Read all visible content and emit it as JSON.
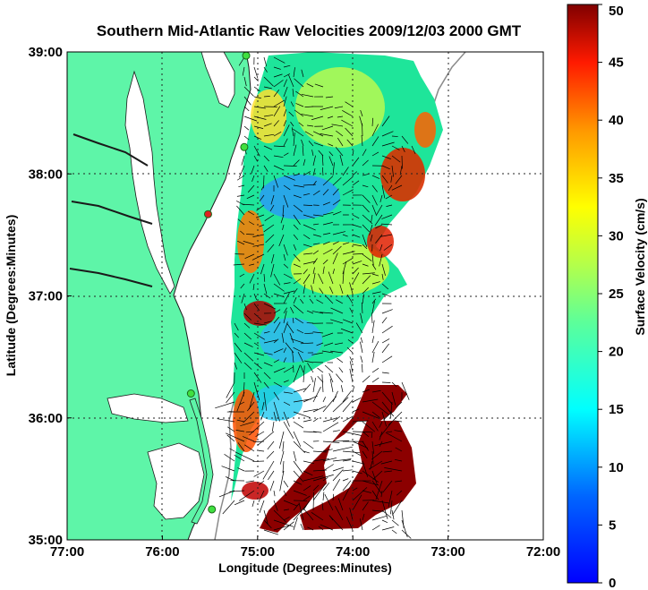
{
  "chart_data": {
    "type": "heatmap",
    "title": "Southern Mid-Atlantic Raw Velocities 2009/12/03 2000 GMT",
    "title_color": "#1010e0",
    "xlabel": "Longitude (Degrees:Minutes)",
    "ylabel": "Latitude (Degrees:Minutes)",
    "xlim": [
      -77,
      -72
    ],
    "ylim": [
      35,
      39
    ],
    "x_ticks": [
      {
        "value": -77,
        "label": "77:00"
      },
      {
        "value": -76,
        "label": "76:00"
      },
      {
        "value": -75,
        "label": "75:00"
      },
      {
        "value": -74,
        "label": "74:00"
      },
      {
        "value": -73,
        "label": "73:00"
      },
      {
        "value": -72,
        "label": "72:00"
      }
    ],
    "y_ticks": [
      {
        "value": 39,
        "label": "39:00"
      },
      {
        "value": 38,
        "label": "38:00"
      },
      {
        "value": 37,
        "label": "37:00"
      },
      {
        "value": 36,
        "label": "36:00"
      },
      {
        "value": 35,
        "label": "35:00"
      }
    ],
    "grid": "dotted",
    "land_color": "#5ef5a8",
    "colorbar": {
      "label": "Surface Velocity (cm/s)",
      "range": [
        0,
        50
      ],
      "ticks": [
        0,
        5,
        10,
        15,
        20,
        25,
        30,
        35,
        40,
        45,
        50
      ],
      "colormap": "jet"
    },
    "stations": [
      {
        "lon": -75.12,
        "lat": 38.97,
        "color": "#40e040"
      },
      {
        "lon": -75.14,
        "lat": 38.22,
        "color": "#40e040"
      },
      {
        "lon": -75.52,
        "lat": 37.67,
        "color": "#e02020"
      },
      {
        "lon": -75.7,
        "lat": 36.2,
        "color": "#40e040"
      },
      {
        "lon": -75.48,
        "lat": 35.25,
        "color": "#40e040"
      }
    ]
  }
}
